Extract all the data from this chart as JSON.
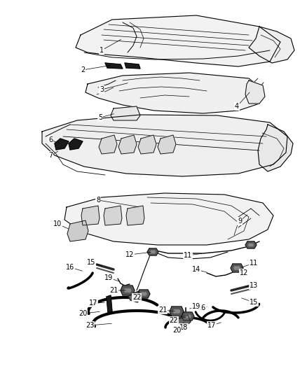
{
  "bg": "#ffffff",
  "lc": "#000000",
  "fig_w": 4.38,
  "fig_h": 5.33,
  "dpi": 100,
  "fs": 7.0
}
